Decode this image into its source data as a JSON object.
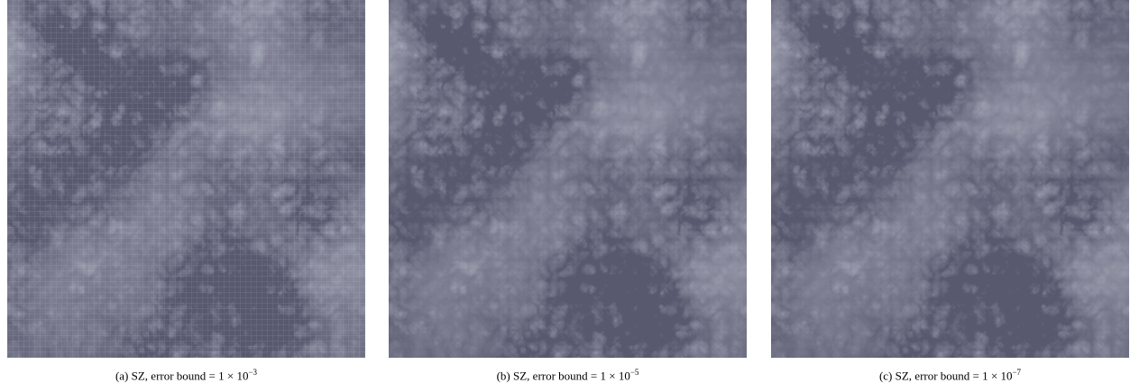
{
  "figure": {
    "panels": [
      {
        "label": "(a)",
        "caption": "SZ, error bound = 1 × 10",
        "exponent": "−3"
      },
      {
        "label": "(b)",
        "caption": "SZ, error bound = 1 × 10",
        "exponent": "−5"
      },
      {
        "label": "(c)",
        "caption": "SZ, error bound = 1 × 10",
        "exponent": "−7"
      }
    ]
  }
}
